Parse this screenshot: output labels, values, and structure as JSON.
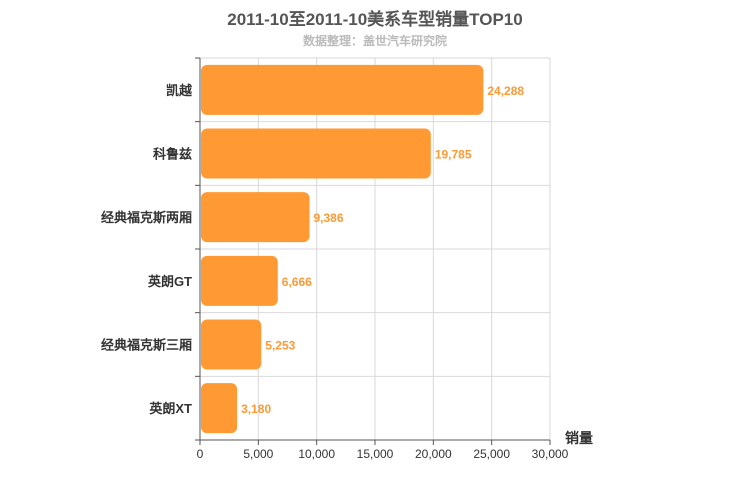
{
  "chart_data": {
    "type": "bar",
    "orientation": "horizontal",
    "title": "2011-10至2011-10美系车型销量TOP10",
    "subtitle": "数据整理：盖世汽车研究院",
    "categories": [
      "凯越",
      "科鲁兹",
      "经典福克斯两厢",
      "英朗GT",
      "经典福克斯三厢",
      "英朗XT"
    ],
    "values": [
      24288,
      19785,
      9386,
      6666,
      5253,
      3180
    ],
    "value_labels": [
      "24,288",
      "19,785",
      "9,386",
      "6,666",
      "5,253",
      "3,180"
    ],
    "xlabel": "销量",
    "ylabel": "",
    "xlim": [
      0,
      30000
    ],
    "x_ticks": [
      0,
      5000,
      10000,
      15000,
      20000,
      25000,
      30000
    ],
    "x_tick_labels": [
      "0",
      "5,000",
      "10,000",
      "15,000",
      "20,000",
      "25,000",
      "30,000"
    ],
    "grid": true,
    "bar_color": "#ff9933",
    "label_color": "#ff9933"
  }
}
